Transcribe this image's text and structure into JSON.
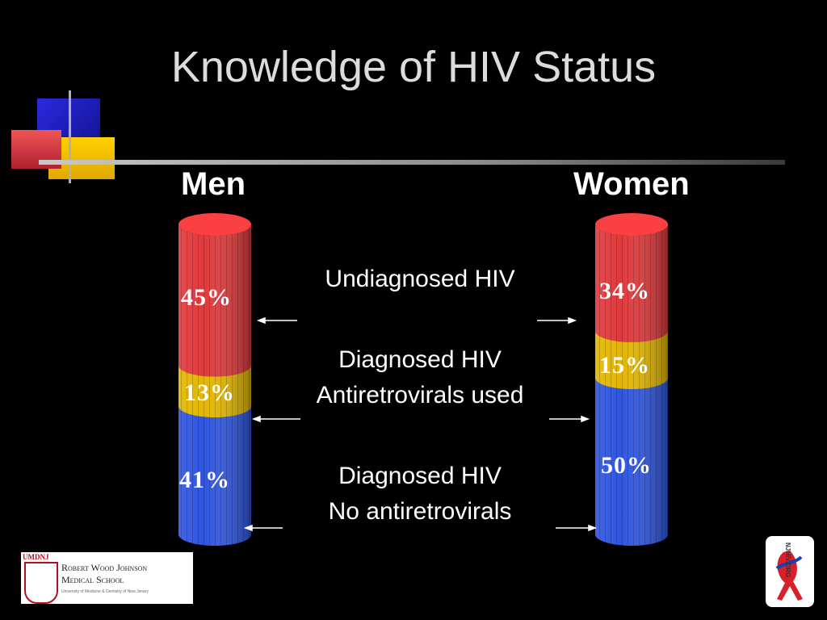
{
  "slide": {
    "title": "Knowledge of HIV Status"
  },
  "chart_data": {
    "type": "bar",
    "stacked": true,
    "style": "3d-cylinder",
    "categories": [
      "Men",
      "Women"
    ],
    "series": [
      {
        "name": "Diagnosed HIV No antiretrovirals",
        "values": [
          41,
          50
        ],
        "labels": [
          "41%",
          "50%"
        ],
        "color": "#2f55e0"
      },
      {
        "name": "Diagnosed HIV Antiretrovirals used",
        "values": [
          13,
          15
        ],
        "labels": [
          "13%",
          "15%"
        ],
        "color": "#e3b600"
      },
      {
        "name": "Undiagnosed HIV",
        "values": [
          45,
          34
        ],
        "labels": [
          "45%",
          "34%"
        ],
        "color": "#e0393c"
      }
    ],
    "legend_placement": "center"
  },
  "legend": {
    "undiagnosed": "Undiagnosed HIV",
    "diag_arv_line1": "Diagnosed HIV",
    "diag_arv_line2": "Antiretrovirals used",
    "diag_noarv_line1": "Diagnosed HIV",
    "diag_noarv_line2": "No antiretrovirals"
  },
  "logos": {
    "left": {
      "badge": "UMDNJ",
      "line1": "Robert Wood Johnson",
      "line2": "Medical School",
      "line3": "University of Medicine & Dentistry of New Jersey"
    },
    "right": {
      "text": "NJHIV.ORG"
    }
  },
  "colors": {
    "red": "#e0393c",
    "yellow": "#e3b600",
    "blue": "#2f55e0",
    "background": "#000000"
  }
}
